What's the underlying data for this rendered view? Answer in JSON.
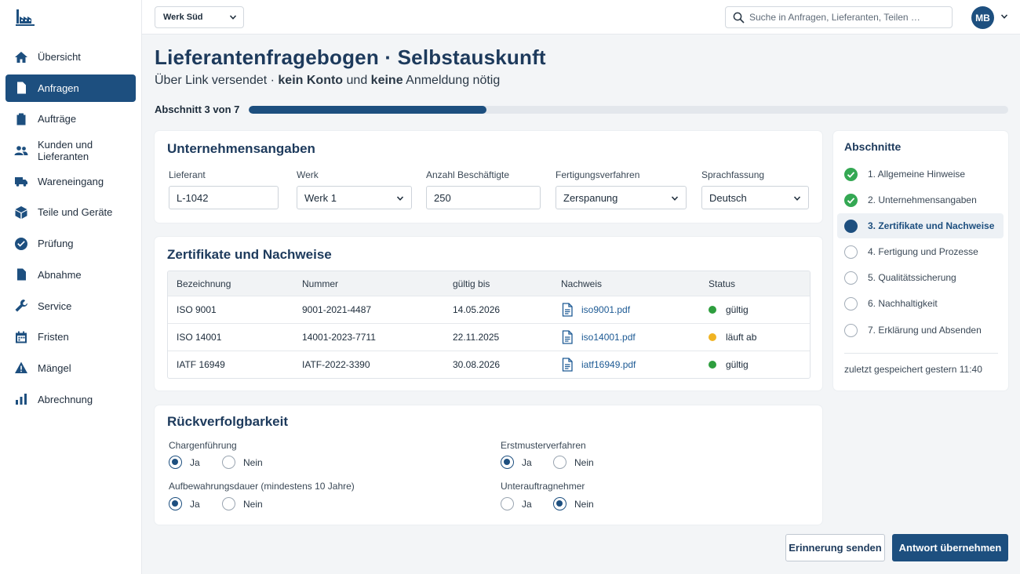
{
  "sidebar": {
    "items": [
      {
        "label": "Übersicht",
        "icon": "home-icon"
      },
      {
        "label": "Anfragen",
        "icon": "document-icon"
      },
      {
        "label": "Aufträge",
        "icon": "clipboard-icon"
      },
      {
        "label": "Kunden und Lieferanten",
        "icon": "people-icon"
      },
      {
        "label": "Wareneingang",
        "icon": "truck-icon"
      },
      {
        "label": "Teile und Geräte",
        "icon": "cube-icon"
      },
      {
        "label": "Prüfung",
        "icon": "check-circle-icon"
      },
      {
        "label": "Abnahme",
        "icon": "document-icon"
      },
      {
        "label": "Service",
        "icon": "wrench-icon"
      },
      {
        "label": "Fristen",
        "icon": "calendar-icon"
      },
      {
        "label": "Mängel",
        "icon": "warning-icon"
      },
      {
        "label": "Abrechnung",
        "icon": "bar-chart-icon"
      }
    ],
    "active_index": 1
  },
  "topbar": {
    "plant": "Werk Süd",
    "search_placeholder": "Suche in Anfragen, Lieferanten, Teilen …",
    "avatar_initials": "MB"
  },
  "header": {
    "title": "Lieferantenfragebogen · Selbstauskunft",
    "subtitle_pre": "Über Link versendet · ",
    "subtitle_b1": "kein Konto",
    "subtitle_mid": " und ",
    "subtitle_b2": "keine",
    "subtitle_post": " Anmeldung nötig",
    "progress_label": "Abschnitt 3 von 7",
    "progress_value": 0.3125
  },
  "company": {
    "title": "Unternehmensangaben",
    "fields": {
      "supplier": {
        "label": "Lieferant",
        "value": "L-1042"
      },
      "plant": {
        "label": "Werk",
        "value": "Werk 1"
      },
      "employees": {
        "label": "Anzahl Beschäftigte",
        "value": "250"
      },
      "process": {
        "label": "Fertigungsverfahren",
        "value": "Zerspanung"
      },
      "language": {
        "label": "Sprachfassung",
        "value": "Deutsch"
      }
    }
  },
  "certs": {
    "title": "Zertifikate und Nachweise",
    "columns": [
      "Bezeichnung",
      "Nummer",
      "gültig bis",
      "Nachweis",
      "Status"
    ],
    "rows": [
      {
        "name": "ISO 9001",
        "number": "9001-2021-4487",
        "valid_until": "14.05.2026",
        "file": "iso9001.pdf",
        "status": "gültig",
        "status_color": "#2e9e3e"
      },
      {
        "name": "ISO 14001",
        "number": "14001-2023-7711",
        "valid_until": "22.11.2025",
        "file": "iso14001.pdf",
        "status": "läuft ab",
        "status_color": "#f0b323"
      },
      {
        "name": "IATF 16949",
        "number": "IATF-2022-3390",
        "valid_until": "30.08.2026",
        "file": "iatf16949.pdf",
        "status": "gültig",
        "status_color": "#2e9e3e"
      }
    ]
  },
  "trace": {
    "title": "Rückverfolgbarkeit",
    "yes": "Ja",
    "no": "Nein",
    "q1": {
      "label": "Chargenführung",
      "selected": "Ja"
    },
    "q2": {
      "label": "Erstmusterverfahren",
      "selected": "Ja"
    },
    "q3": {
      "label": "Aufbewahrungsdauer (mindestens 10 Jahre)",
      "selected": "Ja"
    },
    "q4": {
      "label": "Unterauftragnehmer",
      "selected": "Nein"
    }
  },
  "sections": {
    "title": "Abschnitte",
    "items": [
      {
        "label": "1. Allgemeine Hinweise",
        "state": "done"
      },
      {
        "label": "2. Unternehmensangaben",
        "state": "done"
      },
      {
        "label": "3. Zertifikate und Nachweise",
        "state": "current"
      },
      {
        "label": "4. Fertigung und Prozesse",
        "state": "todo"
      },
      {
        "label": "5. Qualitätssicherung",
        "state": "todo"
      },
      {
        "label": "6. Nachhaltigkeit",
        "state": "todo"
      },
      {
        "label": "7. Erklärung und Absenden",
        "state": "todo"
      }
    ],
    "saved": "zuletzt gespeichert gestern 11:40"
  },
  "actions": {
    "reminder": "Erinnerung senden",
    "accept": "Antwort übernehmen"
  },
  "colors": {
    "brand": "#1d4f7f",
    "ok": "#2e9e3e",
    "warn": "#f0b323"
  }
}
